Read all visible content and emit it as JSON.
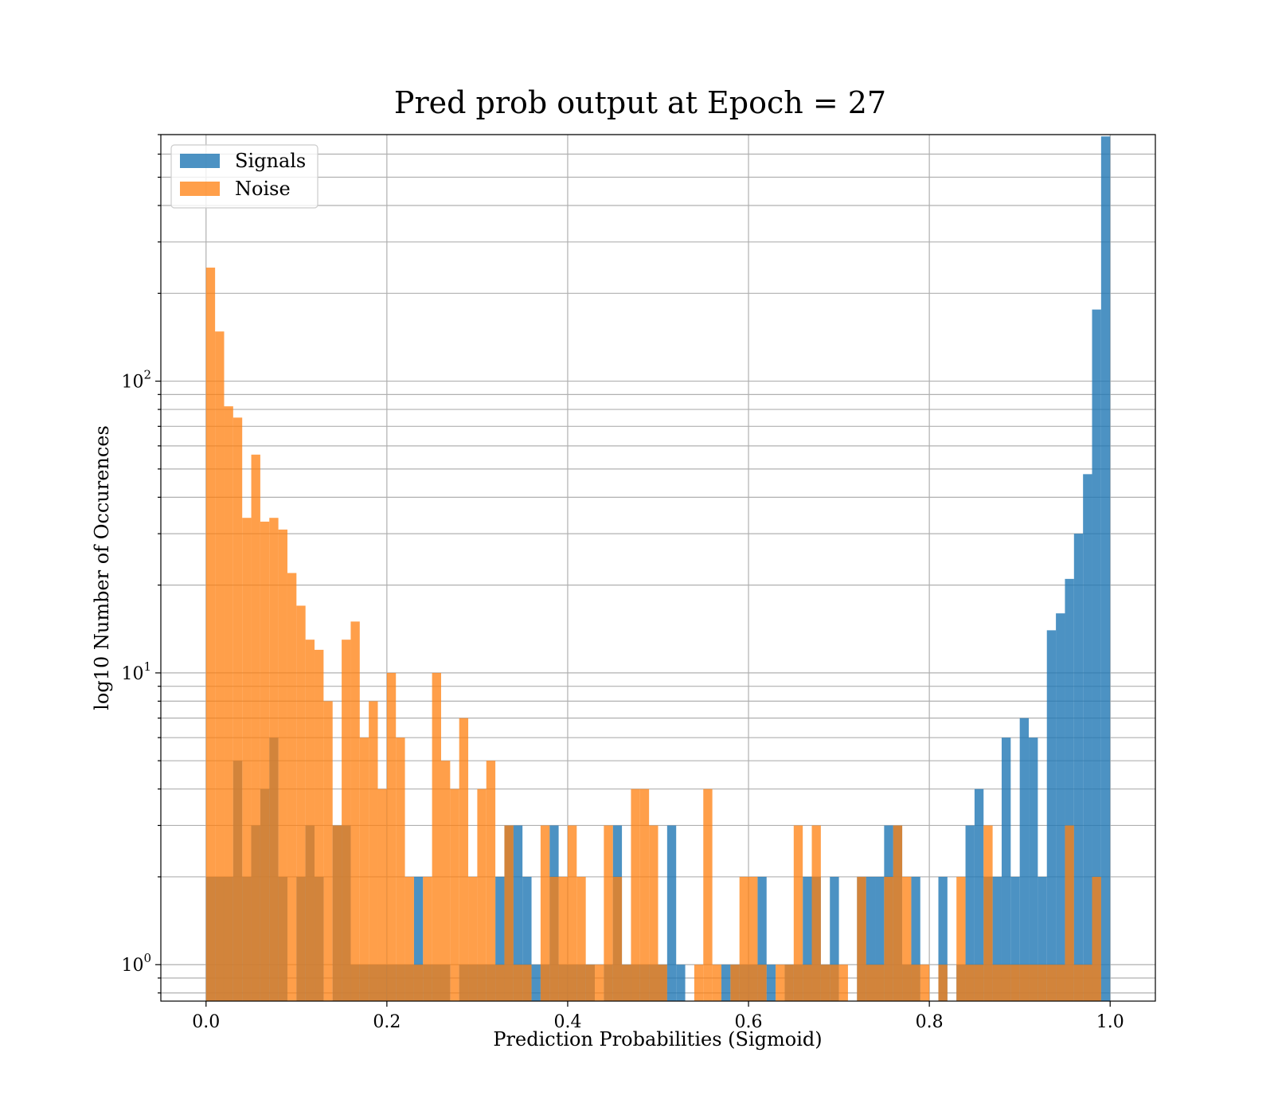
{
  "chart_data": {
    "type": "bar",
    "subtype": "overlaid-histogram",
    "title": "Pred prob output at Epoch = 27",
    "xlabel": "Prediction Probabilities (Sigmoid)",
    "ylabel": "log10 Number of Occurences",
    "xlim": [
      -0.05,
      1.05
    ],
    "ylim": [
      0.75,
      700
    ],
    "yscale": "log",
    "grid": true,
    "legend_position": "top-left",
    "bin_width": 0.01,
    "x_ticks": [
      0.0,
      0.2,
      0.4,
      0.6,
      0.8,
      1.0
    ],
    "x_tick_labels": [
      "0.0",
      "0.2",
      "0.4",
      "0.6",
      "0.8",
      "1.0"
    ],
    "y_major_ticks": [
      1,
      10,
      100
    ],
    "y_tick_labels": [
      {
        "base": "10",
        "exp": "0"
      },
      {
        "base": "10",
        "exp": "1"
      },
      {
        "base": "10",
        "exp": "2"
      }
    ],
    "x": [
      0.0,
      0.01,
      0.02,
      0.03,
      0.04,
      0.05,
      0.06,
      0.07,
      0.08,
      0.09,
      0.1,
      0.11,
      0.12,
      0.13,
      0.14,
      0.15,
      0.16,
      0.17,
      0.18,
      0.19,
      0.2,
      0.21,
      0.22,
      0.23,
      0.24,
      0.25,
      0.26,
      0.27,
      0.28,
      0.29,
      0.3,
      0.31,
      0.32,
      0.33,
      0.34,
      0.35,
      0.36,
      0.37,
      0.38,
      0.39,
      0.4,
      0.41,
      0.42,
      0.43,
      0.44,
      0.45,
      0.46,
      0.47,
      0.48,
      0.49,
      0.5,
      0.51,
      0.52,
      0.53,
      0.54,
      0.55,
      0.56,
      0.57,
      0.58,
      0.59,
      0.6,
      0.61,
      0.62,
      0.63,
      0.64,
      0.65,
      0.66,
      0.67,
      0.68,
      0.69,
      0.7,
      0.71,
      0.72,
      0.73,
      0.74,
      0.75,
      0.76,
      0.77,
      0.78,
      0.79,
      0.8,
      0.81,
      0.82,
      0.83,
      0.84,
      0.85,
      0.86,
      0.87,
      0.88,
      0.89,
      0.9,
      0.91,
      0.92,
      0.93,
      0.94,
      0.95,
      0.96,
      0.97,
      0.98,
      0.99
    ],
    "series": [
      {
        "name": "Signals",
        "color": "#1f77b4",
        "opacity": 0.8,
        "values": [
          2,
          2,
          2,
          5,
          2,
          3,
          4,
          6,
          2,
          0,
          2,
          3,
          2,
          0,
          3,
          3,
          1,
          1,
          1,
          1,
          1,
          1,
          1,
          2,
          1,
          1,
          1,
          0,
          1,
          1,
          1,
          1,
          2,
          3,
          3,
          2,
          1,
          1,
          3,
          1,
          1,
          1,
          1,
          0,
          1,
          3,
          1,
          1,
          1,
          1,
          1,
          3,
          1,
          0,
          0,
          0,
          0,
          1,
          1,
          1,
          1,
          2,
          1,
          0,
          1,
          1,
          2,
          2,
          1,
          2,
          0,
          0,
          2,
          2,
          2,
          3,
          3,
          1,
          2,
          0,
          0,
          2,
          0,
          1,
          3,
          4,
          2,
          2,
          6,
          2,
          7,
          6,
          2,
          14,
          16,
          21,
          30,
          48,
          176,
          690
        ]
      },
      {
        "name": "Noise",
        "color": "#ff7f0e",
        "opacity": 0.75,
        "values": [
          245,
          148,
          82,
          75,
          34,
          56,
          33,
          34,
          31,
          22,
          17,
          13,
          12,
          8,
          3,
          13,
          15,
          6,
          8,
          4,
          10,
          6,
          2,
          1,
          2,
          10,
          5,
          4,
          7,
          2,
          4,
          5,
          1,
          3,
          1,
          1,
          0,
          3,
          2,
          2,
          3,
          2,
          1,
          1,
          3,
          2,
          1,
          4,
          4,
          3,
          1,
          0,
          0,
          0,
          1,
          4,
          1,
          0,
          1,
          2,
          2,
          1,
          0,
          1,
          1,
          3,
          1,
          3,
          1,
          1,
          1,
          0,
          2,
          1,
          1,
          2,
          3,
          2,
          1,
          1,
          0,
          1,
          0,
          2,
          1,
          1,
          3,
          1,
          1,
          1,
          1,
          1,
          1,
          1,
          1,
          3,
          1,
          1,
          2,
          0
        ]
      }
    ]
  }
}
